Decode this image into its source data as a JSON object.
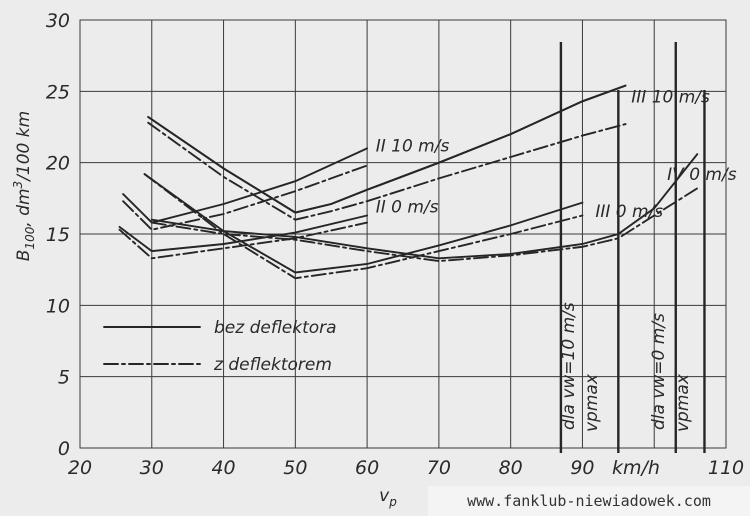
{
  "chart_data": {
    "type": "line",
    "ylabel": "B100, dm³/100 km",
    "xlabel": "vp",
    "x_unit": "km/h",
    "xlim": [
      20,
      110
    ],
    "ylim": [
      0,
      30
    ],
    "x_ticks": [
      20,
      30,
      40,
      50,
      60,
      70,
      80,
      90,
      110
    ],
    "y_ticks": [
      0,
      5,
      10,
      15,
      20,
      25,
      30
    ],
    "grid": true,
    "legend": {
      "placement": "lower-left",
      "entries": [
        {
          "label": "bez deflektora",
          "style": "solid"
        },
        {
          "label": "z deflektorem",
          "style": "dash-dot"
        }
      ]
    },
    "series": [
      {
        "style": "solid",
        "points": [
          [
            29.5,
            23.2
          ],
          [
            40,
            19.6
          ],
          [
            50,
            16.5
          ],
          [
            55,
            17.1
          ],
          [
            60,
            18.1
          ],
          [
            70,
            20
          ],
          [
            80,
            22
          ],
          [
            90,
            24.3
          ],
          [
            96,
            25.4
          ]
        ]
      },
      {
        "style": "solid",
        "points": [
          [
            29.5,
            23.2
          ],
          [
            40,
            19.6
          ],
          [
            50,
            16.5
          ],
          [
            55,
            17.1
          ],
          [
            60,
            18.1
          ],
          [
            70,
            20
          ],
          [
            80,
            22
          ],
          [
            90,
            24.3
          ],
          [
            96,
            25.4
          ]
        ]
      },
      {
        "style": "dash-dot",
        "points": [
          [
            29.5,
            22.8
          ],
          [
            40,
            19
          ],
          [
            50,
            16
          ],
          [
            55,
            16.6
          ],
          [
            60,
            17.3
          ],
          [
            70,
            18.9
          ],
          [
            80,
            20.4
          ],
          [
            90,
            21.9
          ],
          [
            96,
            22.7
          ]
        ]
      },
      {
        "style": "solid",
        "points": [
          [
            26,
            17.8
          ],
          [
            30,
            15.8
          ],
          [
            40,
            17.1
          ],
          [
            50,
            18.7
          ],
          [
            60,
            21
          ]
        ]
      },
      {
        "style": "dash-dot",
        "points": [
          [
            26,
            17.3
          ],
          [
            30,
            15.3
          ],
          [
            40,
            16.4
          ],
          [
            50,
            18
          ],
          [
            60,
            19.8
          ]
        ]
      },
      {
        "style": "solid",
        "points": [
          [
            29,
            19.2
          ],
          [
            40,
            15.2
          ],
          [
            50,
            12.3
          ],
          [
            60,
            12.9
          ],
          [
            70,
            14.2
          ],
          [
            80,
            15.6
          ],
          [
            90,
            17.2
          ]
        ]
      },
      {
        "style": "dash-dot",
        "points": [
          [
            29,
            19.2
          ],
          [
            40,
            15
          ],
          [
            50,
            11.9
          ],
          [
            60,
            12.6
          ],
          [
            70,
            13.8
          ],
          [
            80,
            15
          ],
          [
            90,
            16.3
          ]
        ]
      },
      {
        "style": "solid",
        "points": [
          [
            25.5,
            15.5
          ],
          [
            30,
            13.8
          ],
          [
            40,
            14.3
          ],
          [
            50,
            15.1
          ],
          [
            60,
            16.3
          ]
        ]
      },
      {
        "style": "dash-dot",
        "points": [
          [
            25.5,
            15.3
          ],
          [
            30,
            13.3
          ],
          [
            40,
            14
          ],
          [
            50,
            14.7
          ],
          [
            60,
            15.8
          ]
        ]
      },
      {
        "style": "solid",
        "points": [
          [
            30,
            16
          ],
          [
            40,
            15.2
          ],
          [
            50,
            14.8
          ],
          [
            60,
            14
          ],
          [
            70,
            13.3
          ],
          [
            80,
            13.6
          ],
          [
            90,
            14.3
          ],
          [
            95,
            15
          ],
          [
            100,
            16.8
          ],
          [
            106,
            20.6
          ]
        ]
      },
      {
        "style": "dash-dot",
        "points": [
          [
            30,
            15.8
          ],
          [
            40,
            15
          ],
          [
            50,
            14.6
          ],
          [
            60,
            13.8
          ],
          [
            70,
            13.1
          ],
          [
            80,
            13.5
          ],
          [
            90,
            14.1
          ],
          [
            95,
            14.7
          ],
          [
            100,
            16.3
          ],
          [
            106,
            18.2
          ]
        ]
      }
    ],
    "curve_labels": [
      {
        "text": "II 10 m/s",
        "x": 61.2,
        "y": 20.8
      },
      {
        "text": "III 10 m/s",
        "x": 96.8,
        "y": 24.2
      },
      {
        "text": "II 0 m/s",
        "x": 61.2,
        "y": 16.5
      },
      {
        "text": "III 0 m/s",
        "x": 91.8,
        "y": 16.2
      },
      {
        "text": "IV 0 m/s",
        "x": 101.8,
        "y": 18.8
      }
    ],
    "vertical_markers": [
      {
        "x": 87,
        "label": "dla vw=10 m/s",
        "label2": "vpmax"
      },
      {
        "x": 95,
        "label": "dla vw=10 m/s",
        "label2": "vpmax"
      },
      {
        "x": 103,
        "label": "dla vw=0 m/s",
        "label2": "vpmax"
      },
      {
        "x": 107,
        "label": "dla vw=0 m/s",
        "label2": "vpmax"
      }
    ],
    "marker_texts": {
      "a": "dla  vw=10 m/s",
      "b": "vpmax",
      "c": "dla  vw=0 m/s",
      "d": "vpmax"
    }
  },
  "watermark": "www.fanklub-niewiadowek.com"
}
